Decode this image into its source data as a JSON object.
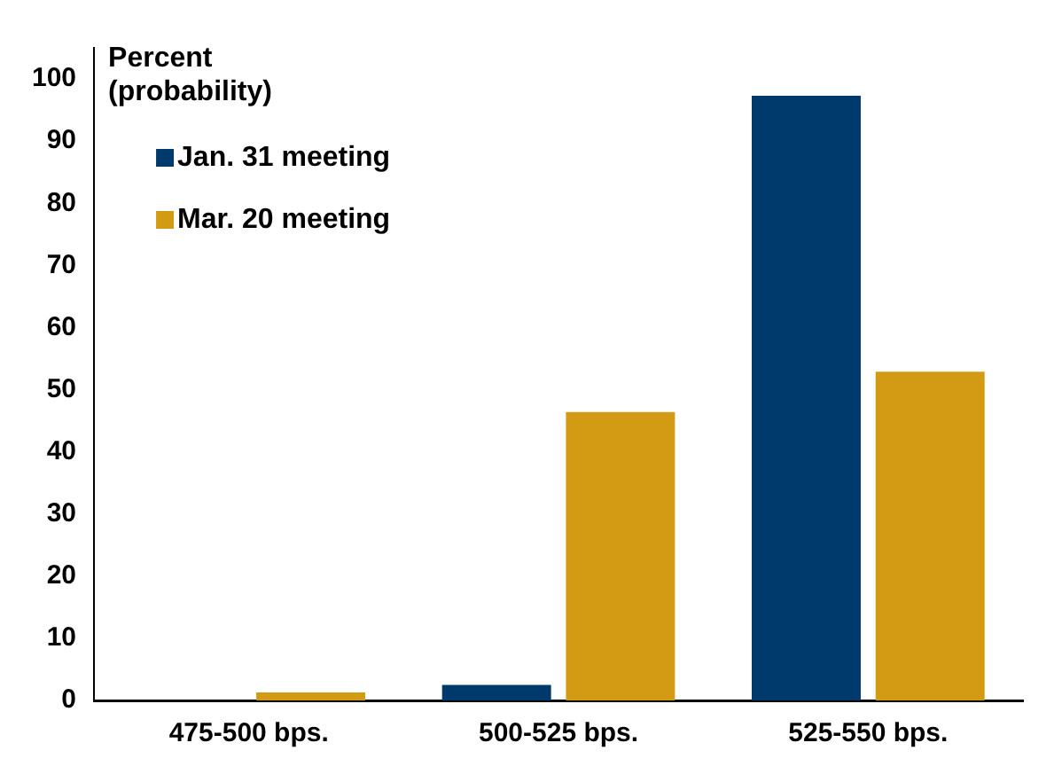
{
  "chart_data": {
    "type": "bar",
    "ylabel": "Percent (probability)",
    "categories": [
      "475-500 bps.",
      "500-525 bps.",
      "525-550 bps."
    ],
    "series": [
      {
        "name": "Jan. 31 meeting",
        "color": "#003a6c",
        "values": [
          0,
          2.5,
          97.3
        ]
      },
      {
        "name": "Mar. 20 meeting",
        "color": "#d39b13",
        "values": [
          1.3,
          46.4,
          52.9
        ]
      }
    ],
    "ylim": [
      0,
      105
    ],
    "yticks": [
      0,
      10,
      20,
      30,
      40,
      50,
      60,
      70,
      80,
      90,
      100
    ],
    "grid": false,
    "legend": "top left"
  }
}
